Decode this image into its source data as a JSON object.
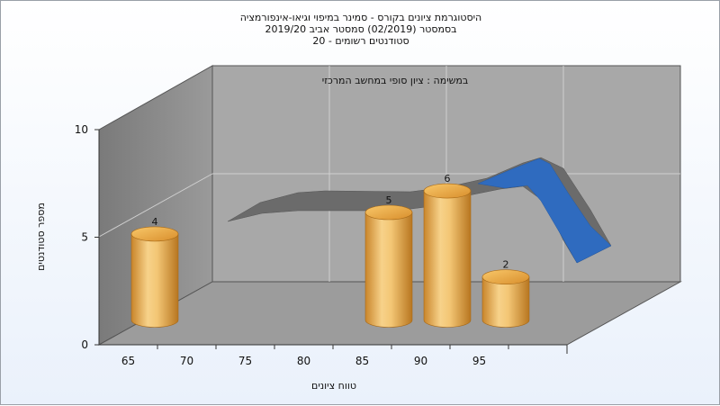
{
  "chart_data": {
    "type": "bar",
    "title_lines": [
      "היסטוגרמת ציונים בקורס - סמינר במיפוי וגיאו-אינפורמציה",
      "בסמסטר  (02/2019)  סמסטר אביב 2019/20",
      "סטודנטים רשומים - 20"
    ],
    "subtitle": "במשימה : ציון סופי במחשב המרכזי",
    "xlabel": "טווח ציונים",
    "ylabel": "מספר סטודנטים",
    "categories": [
      "65",
      "70",
      "75",
      "80",
      "85",
      "90",
      "95"
    ],
    "yticks": [
      "0",
      "5",
      "10"
    ],
    "ylim": [
      0,
      10
    ],
    "values": [
      4,
      0,
      0,
      0,
      5,
      6,
      2
    ],
    "data_labels": [
      "4",
      "",
      "",
      "",
      "5",
      "6",
      "2"
    ],
    "bar_color": "#e8a844",
    "curve_color_back": "#707070",
    "curve_color_front": "#2f6bbf",
    "wall_color": "#a6a6a6",
    "side_wall_color": "#8c8c8c",
    "floor_color": "#9e9e9e"
  }
}
